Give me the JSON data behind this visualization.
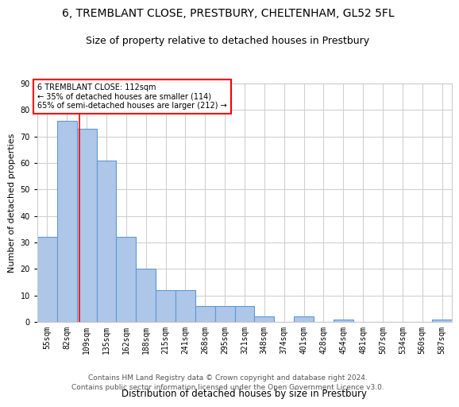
{
  "title": "6, TREMBLANT CLOSE, PRESTBURY, CHELTENHAM, GL52 5FL",
  "subtitle": "Size of property relative to detached houses in Prestbury",
  "xlabel": "Distribution of detached houses by size in Prestbury",
  "ylabel": "Number of detached properties",
  "bar_labels": [
    "55sqm",
    "82sqm",
    "109sqm",
    "135sqm",
    "162sqm",
    "188sqm",
    "215sqm",
    "241sqm",
    "268sqm",
    "295sqm",
    "321sqm",
    "348sqm",
    "374sqm",
    "401sqm",
    "428sqm",
    "454sqm",
    "481sqm",
    "507sqm",
    "534sqm",
    "560sqm",
    "587sqm"
  ],
  "bar_values": [
    32,
    76,
    73,
    61,
    32,
    20,
    12,
    12,
    6,
    6,
    6,
    2,
    0,
    2,
    0,
    1,
    0,
    0,
    0,
    0,
    1
  ],
  "bar_color": "#aec6e8",
  "bar_edge_color": "#5b9bd5",
  "property_line_x": 1.65,
  "annotation_text": "6 TREMBLANT CLOSE: 112sqm\n← 35% of detached houses are smaller (114)\n65% of semi-detached houses are larger (212) →",
  "annotation_box_color": "white",
  "annotation_box_edge_color": "red",
  "property_line_color": "red",
  "ylim": [
    0,
    90
  ],
  "yticks": [
    0,
    10,
    20,
    30,
    40,
    50,
    60,
    70,
    80,
    90
  ],
  "grid_color": "#d0d0d0",
  "background_color": "white",
  "footer_line1": "Contains HM Land Registry data © Crown copyright and database right 2024.",
  "footer_line2": "Contains public sector information licensed under the Open Government Licence v3.0.",
  "title_fontsize": 10,
  "subtitle_fontsize": 9,
  "xlabel_fontsize": 8.5,
  "ylabel_fontsize": 8,
  "tick_fontsize": 7,
  "annotation_fontsize": 7,
  "footer_fontsize": 6.5
}
